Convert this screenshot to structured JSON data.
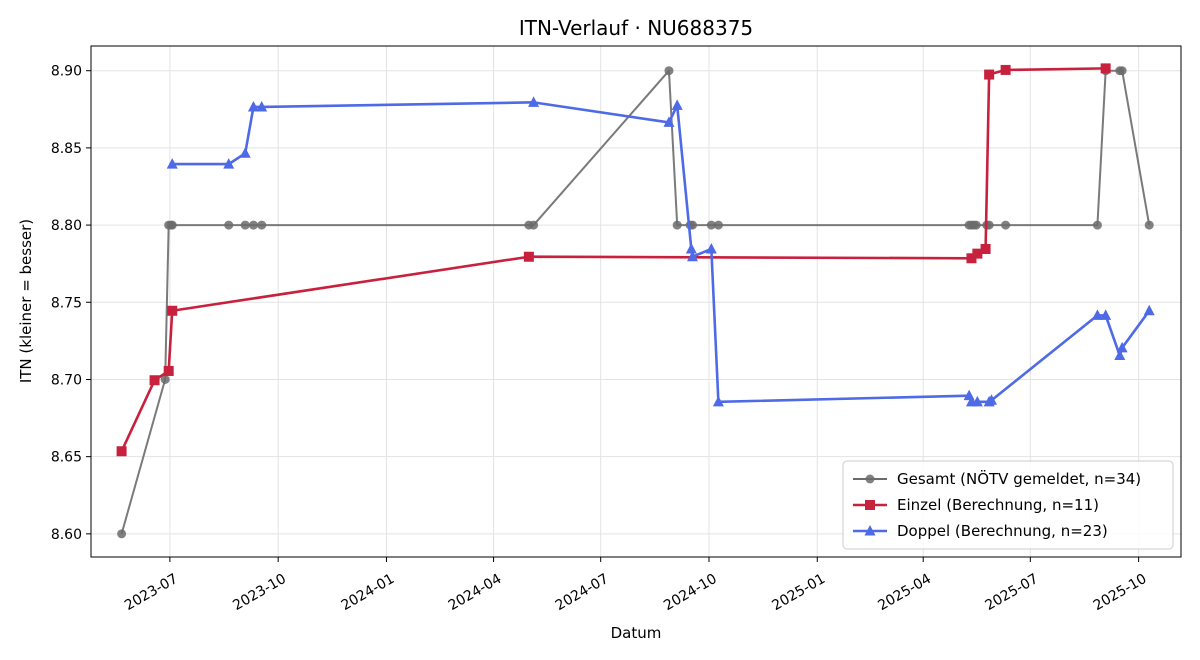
{
  "chart_data": {
    "type": "line",
    "title": "ITN-Verlauf · NU688375",
    "xlabel": "Datum",
    "ylabel": "ITN  (kleiner = besser)",
    "xlim": [
      "2023-04-25",
      "2025-11-06"
    ],
    "ylim": [
      8.585,
      8.916
    ],
    "x_ticks": [
      "2023-07",
      "2023-10",
      "2024-01",
      "2024-04",
      "2024-07",
      "2024-10",
      "2025-01",
      "2025-04",
      "2025-07",
      "2025-10"
    ],
    "y_ticks": [
      "8.60",
      "8.65",
      "8.70",
      "8.75",
      "8.80",
      "8.85",
      "8.90"
    ],
    "grid": true,
    "legend_position": "lower-right",
    "series": [
      {
        "name": "Gesamt (NÖTV gemeldet, n=34)",
        "color": "#6b6b6b",
        "marker": "circle",
        "points": [
          [
            "2023-05-21",
            8.6
          ],
          [
            "2023-06-27",
            8.7
          ],
          [
            "2023-06-30",
            8.8
          ],
          [
            "2023-07-02",
            8.8
          ],
          [
            "2023-07-03",
            8.8
          ],
          [
            "2023-08-20",
            8.8
          ],
          [
            "2023-09-03",
            8.8
          ],
          [
            "2023-09-10",
            8.8
          ],
          [
            "2023-09-17",
            8.8
          ],
          [
            "2024-05-01",
            8.8
          ],
          [
            "2024-05-05",
            8.8
          ],
          [
            "2024-08-28",
            8.9
          ],
          [
            "2024-09-04",
            8.8
          ],
          [
            "2024-09-15",
            8.8
          ],
          [
            "2024-09-17",
            8.8
          ],
          [
            "2024-10-03",
            8.8
          ],
          [
            "2024-10-09",
            8.8
          ],
          [
            "2025-05-10",
            8.8
          ],
          [
            "2025-05-12",
            8.8
          ],
          [
            "2025-05-14",
            8.8
          ],
          [
            "2025-05-16",
            8.8
          ],
          [
            "2025-05-25",
            8.8
          ],
          [
            "2025-05-27",
            8.8
          ],
          [
            "2025-06-10",
            8.8
          ],
          [
            "2025-08-27",
            8.8
          ],
          [
            "2025-09-03",
            8.9
          ],
          [
            "2025-09-15",
            8.9
          ],
          [
            "2025-09-17",
            8.9
          ],
          [
            "2025-10-10",
            8.8
          ]
        ]
      },
      {
        "name": "Einzel (Berechnung, n=11)",
        "color": "#c8213e",
        "marker": "square",
        "points": [
          [
            "2023-05-21",
            8.6535
          ],
          [
            "2023-06-18",
            8.6995
          ],
          [
            "2023-06-30",
            8.7055
          ],
          [
            "2023-07-03",
            8.7445
          ],
          [
            "2024-05-01",
            8.7795
          ],
          [
            "2025-05-12",
            8.7785
          ],
          [
            "2025-05-17",
            8.7815
          ],
          [
            "2025-05-24",
            8.7845
          ],
          [
            "2025-05-27",
            8.8975
          ],
          [
            "2025-06-10",
            8.9005
          ],
          [
            "2025-09-03",
            8.9015
          ]
        ]
      },
      {
        "name": "Doppel (Berechnung, n=23)",
        "color": "#4e6ae6",
        "marker": "triangle",
        "points": [
          [
            "2023-07-03",
            8.8395
          ],
          [
            "2023-08-20",
            8.8395
          ],
          [
            "2023-09-03",
            8.8465
          ],
          [
            "2023-09-10",
            8.8765
          ],
          [
            "2023-09-17",
            8.8765
          ],
          [
            "2024-05-05",
            8.8795
          ],
          [
            "2024-08-28",
            8.8665
          ],
          [
            "2024-09-04",
            8.8775
          ],
          [
            "2024-09-16",
            8.7845
          ],
          [
            "2024-09-17",
            8.7795
          ],
          [
            "2024-10-03",
            8.7845
          ],
          [
            "2024-10-09",
            8.6855
          ],
          [
            "2025-05-10",
            8.6895
          ],
          [
            "2025-05-12",
            8.6855
          ],
          [
            "2025-05-17",
            8.6855
          ],
          [
            "2025-05-27",
            8.6855
          ],
          [
            "2025-05-29",
            8.6865
          ],
          [
            "2025-08-27",
            8.7415
          ],
          [
            "2025-09-03",
            8.7415
          ],
          [
            "2025-09-15",
            8.7155
          ],
          [
            "2025-09-17",
            8.7205
          ],
          [
            "2025-10-10",
            8.7445
          ]
        ]
      }
    ]
  }
}
